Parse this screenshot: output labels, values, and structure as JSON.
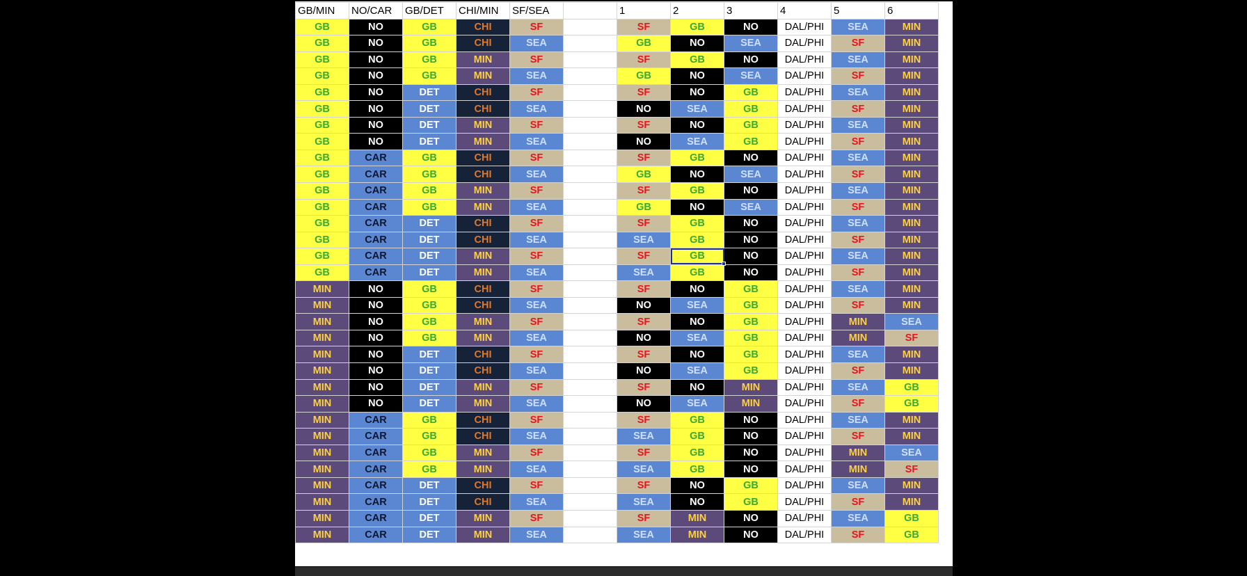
{
  "palette": {
    "GB": {
      "bg": "#ffff44",
      "fg": "#3aaa35"
    },
    "NO": {
      "bg": "#000000",
      "fg": "#ffffff"
    },
    "CAR": {
      "bg": "#5b87d2",
      "fg": "#0d1630"
    },
    "DET": {
      "bg": "#5b87d2",
      "fg": "#ffffff"
    },
    "CHI": {
      "bg": "#152238",
      "fg": "#e0782a"
    },
    "MIN": {
      "bg": "#5b4a7a",
      "fg": "#ffd040"
    },
    "SF": {
      "bg": "#c9bd9d",
      "fg": "#e8141e"
    },
    "SEA": {
      "bg": "#5b87d2",
      "fg": "#cfe0ff"
    }
  },
  "headers": [
    "GB/MIN",
    "NO/CAR",
    "GB/DET",
    "CHI/MIN",
    "SF/SEA",
    "",
    "1",
    "2",
    "3",
    "4",
    "5",
    "6"
  ],
  "rows": [
    [
      "GB",
      "NO",
      "GB",
      "CHI",
      "SF",
      "",
      "SF",
      "GB",
      "NO",
      "DAL/PHI",
      "SEA",
      "MIN"
    ],
    [
      "GB",
      "NO",
      "GB",
      "CHI",
      "SEA",
      "",
      "GB",
      "NO",
      "SEA",
      "DAL/PHI",
      "SF",
      "MIN"
    ],
    [
      "GB",
      "NO",
      "GB",
      "MIN",
      "SF",
      "",
      "SF",
      "GB",
      "NO",
      "DAL/PHI",
      "SEA",
      "MIN"
    ],
    [
      "GB",
      "NO",
      "GB",
      "MIN",
      "SEA",
      "",
      "GB",
      "NO",
      "SEA",
      "DAL/PHI",
      "SF",
      "MIN"
    ],
    [
      "GB",
      "NO",
      "DET",
      "CHI",
      "SF",
      "",
      "SF",
      "NO",
      "GB",
      "DAL/PHI",
      "SEA",
      "MIN"
    ],
    [
      "GB",
      "NO",
      "DET",
      "CHI",
      "SEA",
      "",
      "NO",
      "SEA",
      "GB",
      "DAL/PHI",
      "SF",
      "MIN"
    ],
    [
      "GB",
      "NO",
      "DET",
      "MIN",
      "SF",
      "",
      "SF",
      "NO",
      "GB",
      "DAL/PHI",
      "SEA",
      "MIN"
    ],
    [
      "GB",
      "NO",
      "DET",
      "MIN",
      "SEA",
      "",
      "NO",
      "SEA",
      "GB",
      "DAL/PHI",
      "SF",
      "MIN"
    ],
    [
      "GB",
      "CAR",
      "GB",
      "CHI",
      "SF",
      "",
      "SF",
      "GB",
      "NO",
      "DAL/PHI",
      "SEA",
      "MIN"
    ],
    [
      "GB",
      "CAR",
      "GB",
      "CHI",
      "SEA",
      "",
      "GB",
      "NO",
      "SEA",
      "DAL/PHI",
      "SF",
      "MIN"
    ],
    [
      "GB",
      "CAR",
      "GB",
      "MIN",
      "SF",
      "",
      "SF",
      "GB",
      "NO",
      "DAL/PHI",
      "SEA",
      "MIN"
    ],
    [
      "GB",
      "CAR",
      "GB",
      "MIN",
      "SEA",
      "",
      "GB",
      "NO",
      "SEA",
      "DAL/PHI",
      "SF",
      "MIN"
    ],
    [
      "GB",
      "CAR",
      "DET",
      "CHI",
      "SF",
      "",
      "SF",
      "GB",
      "NO",
      "DAL/PHI",
      "SEA",
      "MIN"
    ],
    [
      "GB",
      "CAR",
      "DET",
      "CHI",
      "SEA",
      "",
      "SEA",
      "GB",
      "NO",
      "DAL/PHI",
      "SF",
      "MIN"
    ],
    [
      "GB",
      "CAR",
      "DET",
      "MIN",
      "SF",
      "",
      "SF",
      "GB",
      "NO",
      "DAL/PHI",
      "SEA",
      "MIN"
    ],
    [
      "GB",
      "CAR",
      "DET",
      "MIN",
      "SEA",
      "",
      "SEA",
      "GB",
      "NO",
      "DAL/PHI",
      "SF",
      "MIN"
    ],
    [
      "MIN",
      "NO",
      "GB",
      "CHI",
      "SF",
      "",
      "SF",
      "NO",
      "GB",
      "DAL/PHI",
      "SEA",
      "MIN"
    ],
    [
      "MIN",
      "NO",
      "GB",
      "CHI",
      "SEA",
      "",
      "NO",
      "SEA",
      "GB",
      "DAL/PHI",
      "SF",
      "MIN"
    ],
    [
      "MIN",
      "NO",
      "GB",
      "MIN",
      "SF",
      "",
      "SF",
      "NO",
      "GB",
      "DAL/PHI",
      "MIN",
      "SEA"
    ],
    [
      "MIN",
      "NO",
      "GB",
      "MIN",
      "SEA",
      "",
      "NO",
      "SEA",
      "GB",
      "DAL/PHI",
      "MIN",
      "SF"
    ],
    [
      "MIN",
      "NO",
      "DET",
      "CHI",
      "SF",
      "",
      "SF",
      "NO",
      "GB",
      "DAL/PHI",
      "SEA",
      "MIN"
    ],
    [
      "MIN",
      "NO",
      "DET",
      "CHI",
      "SEA",
      "",
      "NO",
      "SEA",
      "GB",
      "DAL/PHI",
      "SF",
      "MIN"
    ],
    [
      "MIN",
      "NO",
      "DET",
      "MIN",
      "SF",
      "",
      "SF",
      "NO",
      "MIN",
      "DAL/PHI",
      "SEA",
      "GB"
    ],
    [
      "MIN",
      "NO",
      "DET",
      "MIN",
      "SEA",
      "",
      "NO",
      "SEA",
      "MIN",
      "DAL/PHI",
      "SF",
      "GB"
    ],
    [
      "MIN",
      "CAR",
      "GB",
      "CHI",
      "SF",
      "",
      "SF",
      "GB",
      "NO",
      "DAL/PHI",
      "SEA",
      "MIN"
    ],
    [
      "MIN",
      "CAR",
      "GB",
      "CHI",
      "SEA",
      "",
      "SEA",
      "GB",
      "NO",
      "DAL/PHI",
      "SF",
      "MIN"
    ],
    [
      "MIN",
      "CAR",
      "GB",
      "MIN",
      "SF",
      "",
      "SF",
      "GB",
      "NO",
      "DAL/PHI",
      "MIN",
      "SEA"
    ],
    [
      "MIN",
      "CAR",
      "GB",
      "MIN",
      "SEA",
      "",
      "SEA",
      "GB",
      "NO",
      "DAL/PHI",
      "MIN",
      "SF"
    ],
    [
      "MIN",
      "CAR",
      "DET",
      "CHI",
      "SF",
      "",
      "SF",
      "NO",
      "GB",
      "DAL/PHI",
      "SEA",
      "MIN"
    ],
    [
      "MIN",
      "CAR",
      "DET",
      "CHI",
      "SEA",
      "",
      "SEA",
      "NO",
      "GB",
      "DAL/PHI",
      "SF",
      "MIN"
    ],
    [
      "MIN",
      "CAR",
      "DET",
      "MIN",
      "SF",
      "",
      "SF",
      "MIN",
      "NO",
      "DAL/PHI",
      "SEA",
      "GB"
    ],
    [
      "MIN",
      "CAR",
      "DET",
      "MIN",
      "SEA",
      "",
      "SEA",
      "MIN",
      "NO",
      "DAL/PHI",
      "SF",
      "GB"
    ]
  ],
  "selected_cell": {
    "row": 14,
    "col": 7
  }
}
